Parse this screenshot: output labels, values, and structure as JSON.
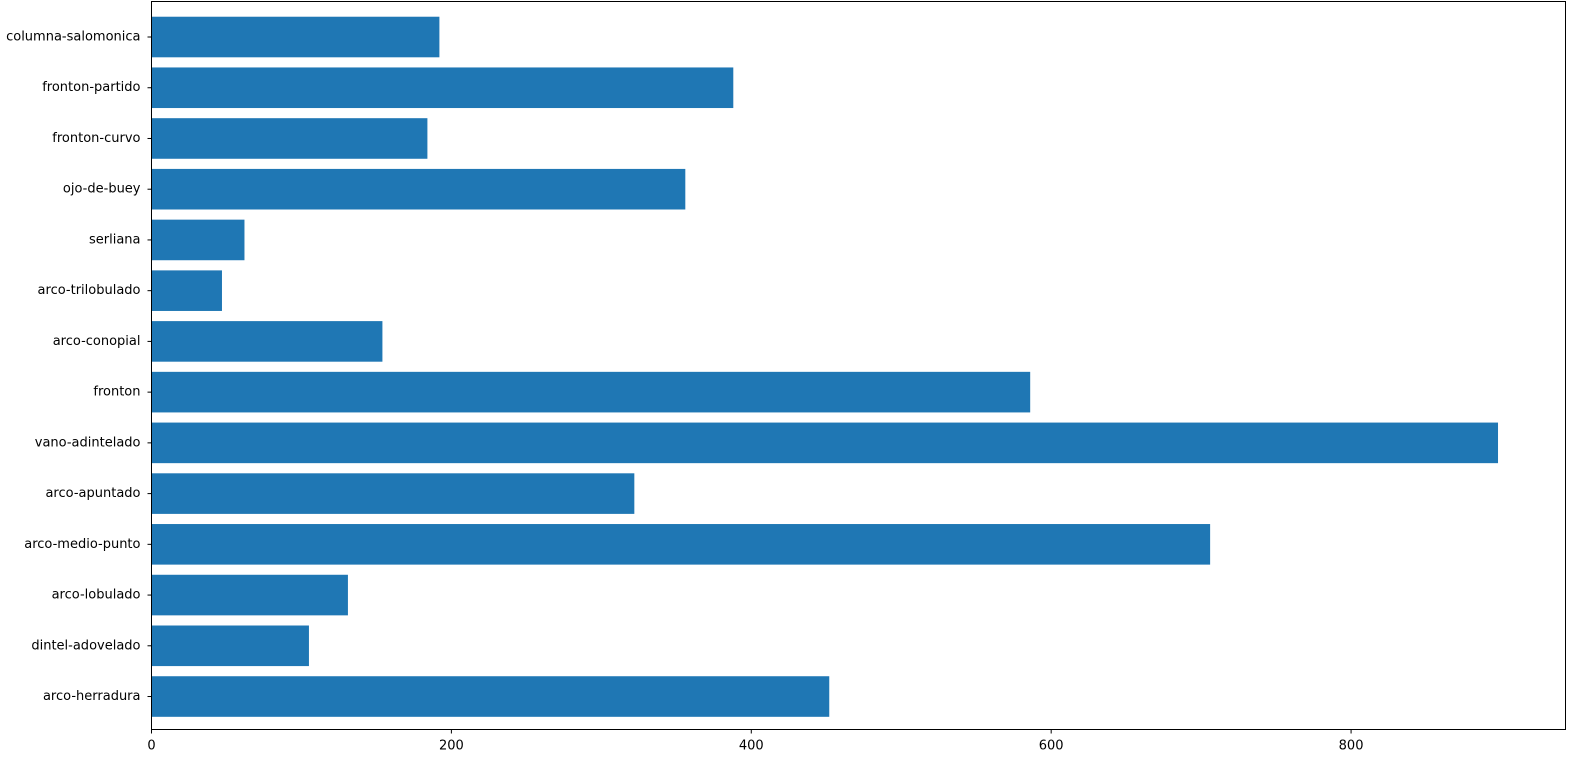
{
  "chart_data": {
    "type": "bar",
    "orientation": "horizontal",
    "title": "",
    "xlabel": "",
    "ylabel": "",
    "categories": [
      "arco-herradura",
      "dintel-adovelado",
      "arco-lobulado",
      "arco-medio-punto",
      "arco-apuntado",
      "vano-adintelado",
      "fronton",
      "arco-conopial",
      "arco-trilobulado",
      "serliana",
      "ojo-de-buey",
      "fronton-curvo",
      "fronton-partido",
      "columna-salomonica"
    ],
    "values": [
      452,
      105,
      131,
      706,
      322,
      898,
      586,
      154,
      47,
      62,
      356,
      184,
      388,
      192
    ],
    "xlim": [
      0,
      943
    ],
    "xticks": [
      0,
      200,
      400,
      600,
      800
    ],
    "bar_color": "#1f77b4",
    "grid": false,
    "legend": "none"
  }
}
